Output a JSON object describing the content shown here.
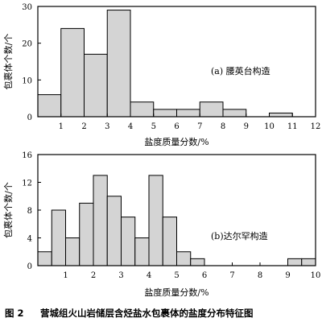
{
  "chart_data": [
    {
      "type": "bar",
      "annotation": "(a) 腰英台构造",
      "xlabel": "盐度质量分数/%",
      "ylabel": "包裹体个数/个",
      "xlim": [
        0,
        12
      ],
      "ylim": [
        0,
        30
      ],
      "xticks": [
        "1",
        "2",
        "3",
        "4",
        "5",
        "6",
        "7",
        "8",
        "9",
        "10",
        "11",
        "12"
      ],
      "yticks": [
        "0",
        "10",
        "20",
        "30"
      ],
      "bins": [
        {
          "x0": 0.0,
          "x1": 1.0,
          "value": 6
        },
        {
          "x0": 1.0,
          "x1": 2.0,
          "value": 24
        },
        {
          "x0": 2.0,
          "x1": 3.0,
          "value": 17
        },
        {
          "x0": 3.0,
          "x1": 4.0,
          "value": 29
        },
        {
          "x0": 4.0,
          "x1": 5.0,
          "value": 4
        },
        {
          "x0": 5.0,
          "x1": 6.0,
          "value": 2
        },
        {
          "x0": 6.0,
          "x1": 7.0,
          "value": 2
        },
        {
          "x0": 7.0,
          "x1": 8.0,
          "value": 4
        },
        {
          "x0": 8.0,
          "x1": 9.0,
          "value": 2
        },
        {
          "x0": 10.0,
          "x1": 11.0,
          "value": 1
        }
      ]
    },
    {
      "type": "bar",
      "annotation": "(b)达尔罕构造",
      "xlabel": "盐度质量分数/%",
      "ylabel": "包裹体个数/个",
      "xlim": [
        0,
        10
      ],
      "ylim": [
        0,
        16
      ],
      "xticks": [
        "1",
        "2",
        "3",
        "4",
        "5",
        "6",
        "7",
        "8",
        "9",
        "10"
      ],
      "yticks": [
        "0",
        "4",
        "8",
        "12",
        "16"
      ],
      "bins": [
        {
          "x0": 0.0,
          "x1": 0.5,
          "value": 2
        },
        {
          "x0": 0.5,
          "x1": 1.0,
          "value": 8
        },
        {
          "x0": 1.0,
          "x1": 1.5,
          "value": 4
        },
        {
          "x0": 1.5,
          "x1": 2.0,
          "value": 9
        },
        {
          "x0": 2.0,
          "x1": 2.5,
          "value": 13
        },
        {
          "x0": 2.5,
          "x1": 3.0,
          "value": 10
        },
        {
          "x0": 3.0,
          "x1": 3.5,
          "value": 7
        },
        {
          "x0": 3.5,
          "x1": 4.0,
          "value": 4
        },
        {
          "x0": 4.0,
          "x1": 4.5,
          "value": 13
        },
        {
          "x0": 4.5,
          "x1": 5.0,
          "value": 7
        },
        {
          "x0": 5.0,
          "x1": 5.5,
          "value": 2
        },
        {
          "x0": 5.5,
          "x1": 6.0,
          "value": 1
        },
        {
          "x0": 9.0,
          "x1": 9.5,
          "value": 1
        },
        {
          "x0": 9.5,
          "x1": 10.0,
          "value": 1
        }
      ]
    }
  ],
  "caption": {
    "label": "图 2",
    "text": "营城组火山岩储层含烃盐水包裹体的盐度分布特征图"
  }
}
